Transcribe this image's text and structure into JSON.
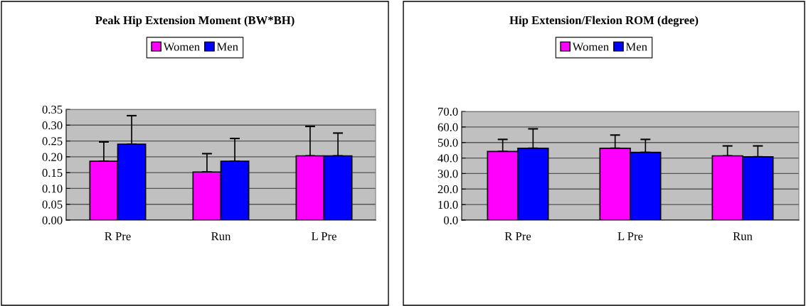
{
  "chart_data": [
    {
      "type": "bar",
      "title": "Peak Hip Extension Moment (BW*BH)",
      "categories": [
        "R Pre",
        "Run",
        "L Pre"
      ],
      "series": [
        {
          "name": "Women",
          "color": "#ff00ff",
          "values": [
            0.186,
            0.152,
            0.203
          ],
          "errors": [
            [
              0.186,
              0.247
            ],
            [
              0.152,
              0.21
            ],
            [
              0.203,
              0.296
            ]
          ]
        },
        {
          "name": "Men",
          "color": "#0000ff",
          "values": [
            0.24,
            0.186,
            0.203
          ],
          "errors": [
            [
              0.24,
              0.33
            ],
            [
              0.186,
              0.258
            ],
            [
              0.203,
              0.275
            ]
          ]
        }
      ],
      "ylim": [
        0,
        0.35
      ],
      "yticks": [
        {
          "value": 0,
          "label": "0.00"
        },
        {
          "value": 0.05,
          "label": "0.05"
        },
        {
          "value": 0.1,
          "label": "0.10"
        },
        {
          "value": 0.15,
          "label": "0.15"
        },
        {
          "value": 0.2,
          "label": "0.20"
        },
        {
          "value": 0.25,
          "label": "0.25"
        },
        {
          "value": 0.3,
          "label": "0.30"
        },
        {
          "value": 0.35,
          "label": "0.35"
        }
      ],
      "grid": "y",
      "legend": "top"
    },
    {
      "type": "bar",
      "title": "Hip Extension/Flexion ROM (degree)",
      "categories": [
        "R Pre",
        "L Pre",
        "Run"
      ],
      "series": [
        {
          "name": "Women",
          "color": "#ff00ff",
          "values": [
            44.2,
            46.3,
            41.4
          ],
          "errors": [
            [
              44.2,
              52.0
            ],
            [
              46.3,
              54.8
            ],
            [
              41.4,
              47.8
            ]
          ]
        },
        {
          "name": "Men",
          "color": "#0000ff",
          "values": [
            46.3,
            43.6,
            40.8
          ],
          "errors": [
            [
              46.3,
              58.8
            ],
            [
              43.6,
              52.0
            ],
            [
              40.8,
              47.8
            ]
          ]
        }
      ],
      "ylim": [
        0,
        70
      ],
      "yticks": [
        {
          "value": 0,
          "label": "0.0"
        },
        {
          "value": 10,
          "label": "10.0"
        },
        {
          "value": 20,
          "label": "20.0"
        },
        {
          "value": 30,
          "label": "30.0"
        },
        {
          "value": 40,
          "label": "40.0"
        },
        {
          "value": 50,
          "label": "50.0"
        },
        {
          "value": 60,
          "label": "60.0"
        },
        {
          "value": 70,
          "label": "70.0"
        }
      ],
      "grid": "y",
      "legend": "top"
    }
  ]
}
